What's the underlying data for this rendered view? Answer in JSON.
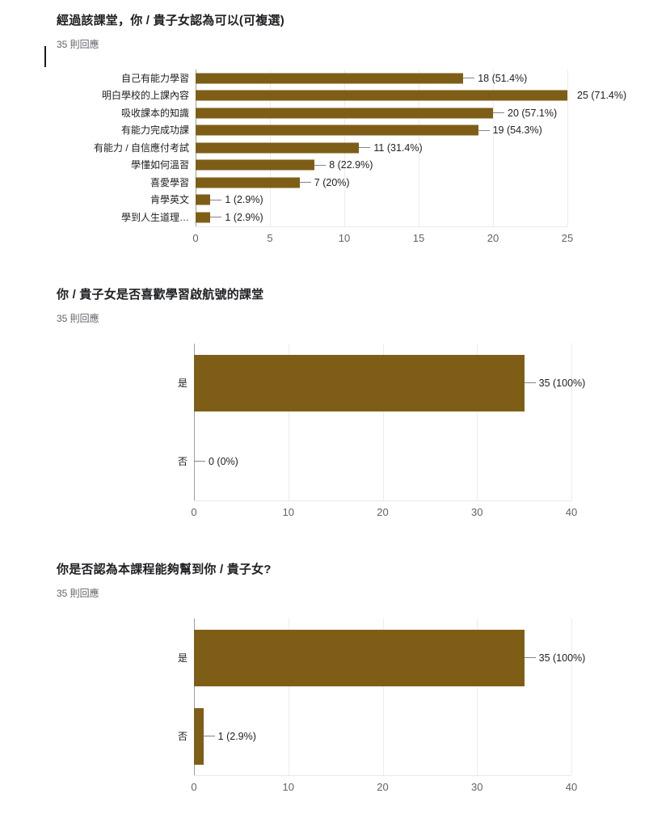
{
  "colors": {
    "bar": "#7E5E17",
    "title_text": "#202124",
    "subtitle_text": "#5f6368",
    "category_text": "#202124",
    "value_text": "#202124",
    "tick_text": "#5f6368",
    "gridline": "#ececec",
    "axis_line": "#9e9e9e",
    "baseline": "#e8e8e8",
    "callout_line": "#80868b",
    "background": "#ffffff"
  },
  "chart_data": [
    {
      "type": "bar",
      "orientation": "horizontal",
      "title": "經過該課堂，你 / 貴子女認為可以(可複選)",
      "subtitle": "35 則回應",
      "categories": [
        "自己有能力學習",
        "明白學校的上課內容",
        "吸收課本的知識",
        "有能力完成功課",
        "有能力 / 自信應付考試",
        "學懂如何溫習",
        "喜愛學習",
        "肯學英文",
        "學到人生道理…"
      ],
      "values": [
        18,
        25,
        20,
        19,
        11,
        8,
        7,
        1,
        1
      ],
      "labels": [
        "18 (51.4%)",
        "25 (71.4%)",
        "20 (57.1%)",
        "19 (54.3%)",
        "11 (31.4%)",
        "8 (22.9%)",
        "7 (20%)",
        "1 (2.9%)",
        "1 (2.9%)"
      ],
      "xlim": [
        0,
        25
      ],
      "xticks": [
        0,
        5,
        10,
        15,
        20,
        25
      ],
      "grid": true,
      "legend": "none"
    },
    {
      "type": "bar",
      "orientation": "horizontal",
      "title": "你 / 貴子女是否喜歡學習啟航號的課堂",
      "subtitle": "35 則回應",
      "categories": [
        "是",
        "否"
      ],
      "values": [
        35,
        0
      ],
      "labels": [
        "35 (100%)",
        "0 (0%)"
      ],
      "xlim": [
        0,
        40
      ],
      "xticks": [
        0,
        10,
        20,
        30,
        40
      ],
      "grid": true,
      "legend": "none"
    },
    {
      "type": "bar",
      "orientation": "horizontal",
      "title": "你是否認為本課程能夠幫到你 / 貴子女?",
      "subtitle": "35 則回應",
      "categories": [
        "是",
        "否"
      ],
      "values": [
        35,
        1
      ],
      "labels": [
        "35 (100%)",
        "1 (2.9%)"
      ],
      "xlim": [
        0,
        40
      ],
      "xticks": [
        0,
        10,
        20,
        30,
        40
      ],
      "grid": true,
      "legend": "none"
    }
  ]
}
